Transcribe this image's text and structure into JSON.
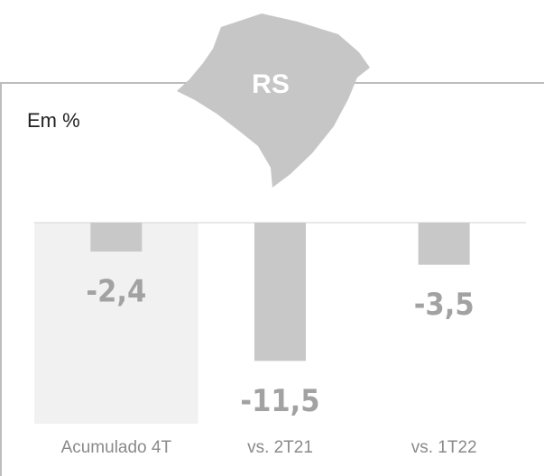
{
  "chart_data": {
    "type": "bar",
    "subtitle": "Em %",
    "map_label": "RS",
    "categories": [
      "Acumulado 4T",
      "vs. 2T21",
      "vs. 1T22"
    ],
    "values": [
      -2.4,
      -11.5,
      -3.5
    ],
    "value_labels": [
      "-2,4",
      "-11,5",
      "-3,5"
    ],
    "color": "#c8c8c8",
    "ylim": [
      -12,
      0
    ]
  }
}
